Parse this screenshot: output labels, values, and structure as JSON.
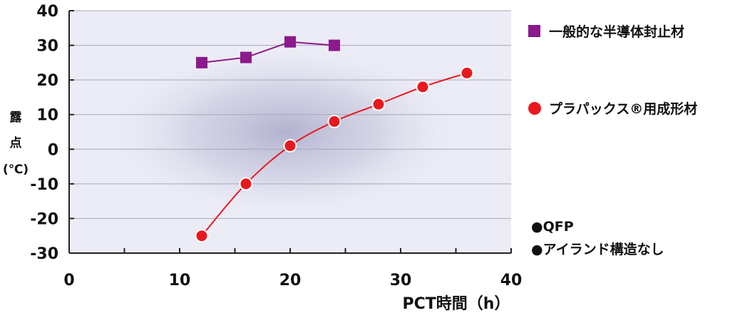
{
  "chart_data": {
    "type": "line",
    "xlabel": "PCT時間（h）",
    "ylabel_lines": [
      "露",
      "点",
      "(℃)"
    ],
    "xlim": [
      0,
      40
    ],
    "ylim": [
      -30,
      40
    ],
    "xticks": [
      0,
      10,
      20,
      30,
      40
    ],
    "yticks": [
      40,
      30,
      20,
      10,
      0,
      -10,
      -20,
      -30
    ],
    "xtick_labels": [
      "0",
      "10",
      "20",
      "30",
      "40"
    ],
    "ytick_labels": [
      "40",
      "30",
      "20",
      "10",
      "0",
      "-10",
      "-20",
      "-30"
    ],
    "grid": true,
    "legend_position": "right",
    "series": [
      {
        "name": "一般的な半導体封止材",
        "color": "#8b1a8b",
        "marker": "square",
        "x": [
          12,
          16,
          20,
          24
        ],
        "y": [
          25,
          26.5,
          31,
          30
        ]
      },
      {
        "name": "プラパックス®用成形材",
        "color": "#e8191e",
        "marker": "circle",
        "x": [
          12,
          16,
          20,
          24,
          28,
          32,
          36
        ],
        "y": [
          -25,
          -10,
          1,
          8,
          13,
          18,
          22
        ]
      }
    ],
    "annotations": [
      "●QFP",
      "●アイランド構造なし"
    ]
  }
}
